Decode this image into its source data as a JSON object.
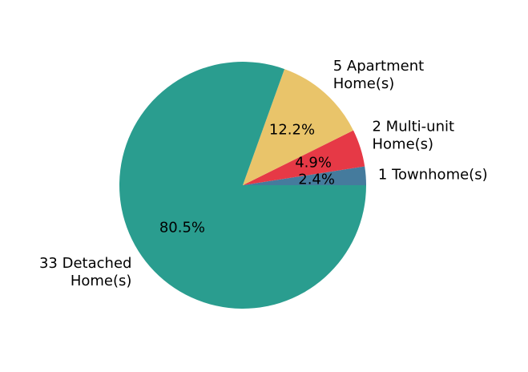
{
  "chart_data": {
    "type": "pie",
    "start_angle_deg": 0,
    "direction": "counterclockwise",
    "slices": [
      {
        "label_lines": [
          "1 Townhome(s)"
        ],
        "count": 1,
        "percent_label": "2.4%",
        "color": "#457b9d"
      },
      {
        "label_lines": [
          "2 Multi-unit",
          "Home(s)"
        ],
        "count": 2,
        "percent_label": "4.9%",
        "color": "#e63946"
      },
      {
        "label_lines": [
          "5 Apartment",
          "Home(s)"
        ],
        "count": 5,
        "percent_label": "12.2%",
        "color": "#e9c46a"
      },
      {
        "label_lines": [
          "33 Detached",
          "Home(s)"
        ],
        "count": 33,
        "percent_label": "80.5%",
        "color": "#2a9d8f"
      }
    ]
  }
}
